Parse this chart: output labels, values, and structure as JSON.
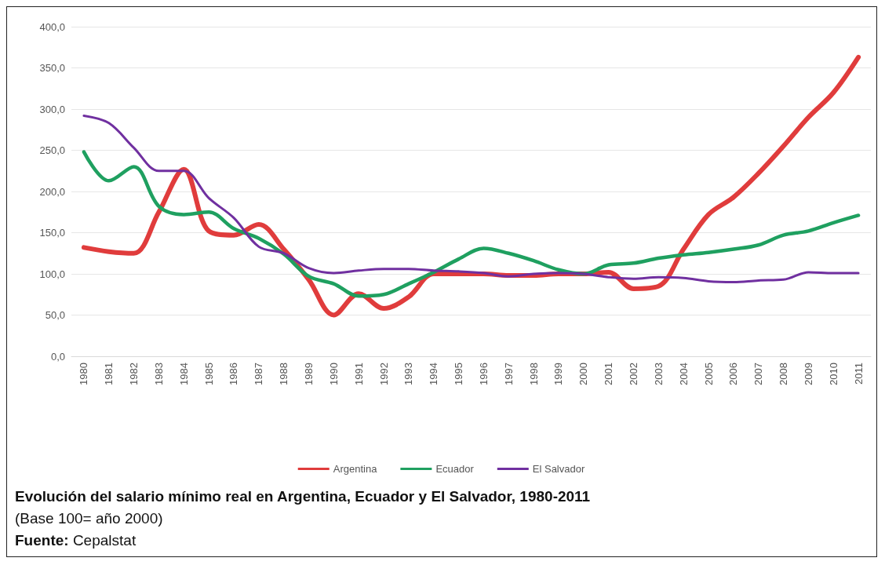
{
  "chart_data": {
    "type": "line",
    "title": "Evolución del salario mínimo real en Argentina, Ecuador y El Salvador, 1980-2011",
    "subtitle": "(Base 100= año 2000)",
    "annotations": [
      "Fuente: Cepalstat"
    ],
    "categories": [
      "1980",
      "1981",
      "1982",
      "1983",
      "1984",
      "1985",
      "1986",
      "1987",
      "1988",
      "1989",
      "1990",
      "1991",
      "1992",
      "1993",
      "1994",
      "1995",
      "1996",
      "1997",
      "1998",
      "1999",
      "2000",
      "2001",
      "2002",
      "2003",
      "2004",
      "2005",
      "2006",
      "2007",
      "2008",
      "2009",
      "2010",
      "2011"
    ],
    "series": [
      {
        "name": "Argentina",
        "color": "#e03c3c",
        "values": [
          132,
          127,
          125,
          175,
          227,
          152,
          147,
          160,
          130,
          93,
          50,
          76,
          58,
          72,
          100,
          100,
          100,
          98,
          98,
          100,
          100,
          102,
          82,
          85,
          130,
          172,
          193,
          222,
          255,
          290,
          320,
          363
        ]
      },
      {
        "name": "Ecuador",
        "color": "#1fa060",
        "values": [
          248,
          213,
          230,
          182,
          172,
          175,
          155,
          143,
          124,
          97,
          88,
          73,
          75,
          88,
          102,
          118,
          131,
          125,
          116,
          105,
          100,
          111,
          113,
          119,
          123,
          126,
          130,
          135,
          147,
          152,
          162,
          171
        ]
      },
      {
        "name": "El Salvador",
        "color": "#7030a0",
        "values": [
          292,
          283,
          253,
          225,
          225,
          192,
          168,
          133,
          125,
          107,
          101,
          104,
          106,
          106,
          104,
          103,
          101,
          97,
          100,
          101,
          100,
          96,
          94,
          96,
          95,
          91,
          90,
          92,
          93,
          102,
          101,
          101
        ]
      }
    ],
    "ylim": [
      0,
      400
    ],
    "yticks": [
      {
        "value": 0,
        "label": "0,0"
      },
      {
        "value": 50,
        "label": "50,0"
      },
      {
        "value": 100,
        "label": "100,0"
      },
      {
        "value": 150,
        "label": "150,0"
      },
      {
        "value": 200,
        "label": "200,0"
      },
      {
        "value": 250,
        "label": "250,0"
      },
      {
        "value": 300,
        "label": "300,0"
      },
      {
        "value": 350,
        "label": "350,0"
      },
      {
        "value": 400,
        "label": "400,0"
      }
    ],
    "grid": "y",
    "legend": "bottom",
    "marker": "none",
    "line_style": "solid"
  }
}
